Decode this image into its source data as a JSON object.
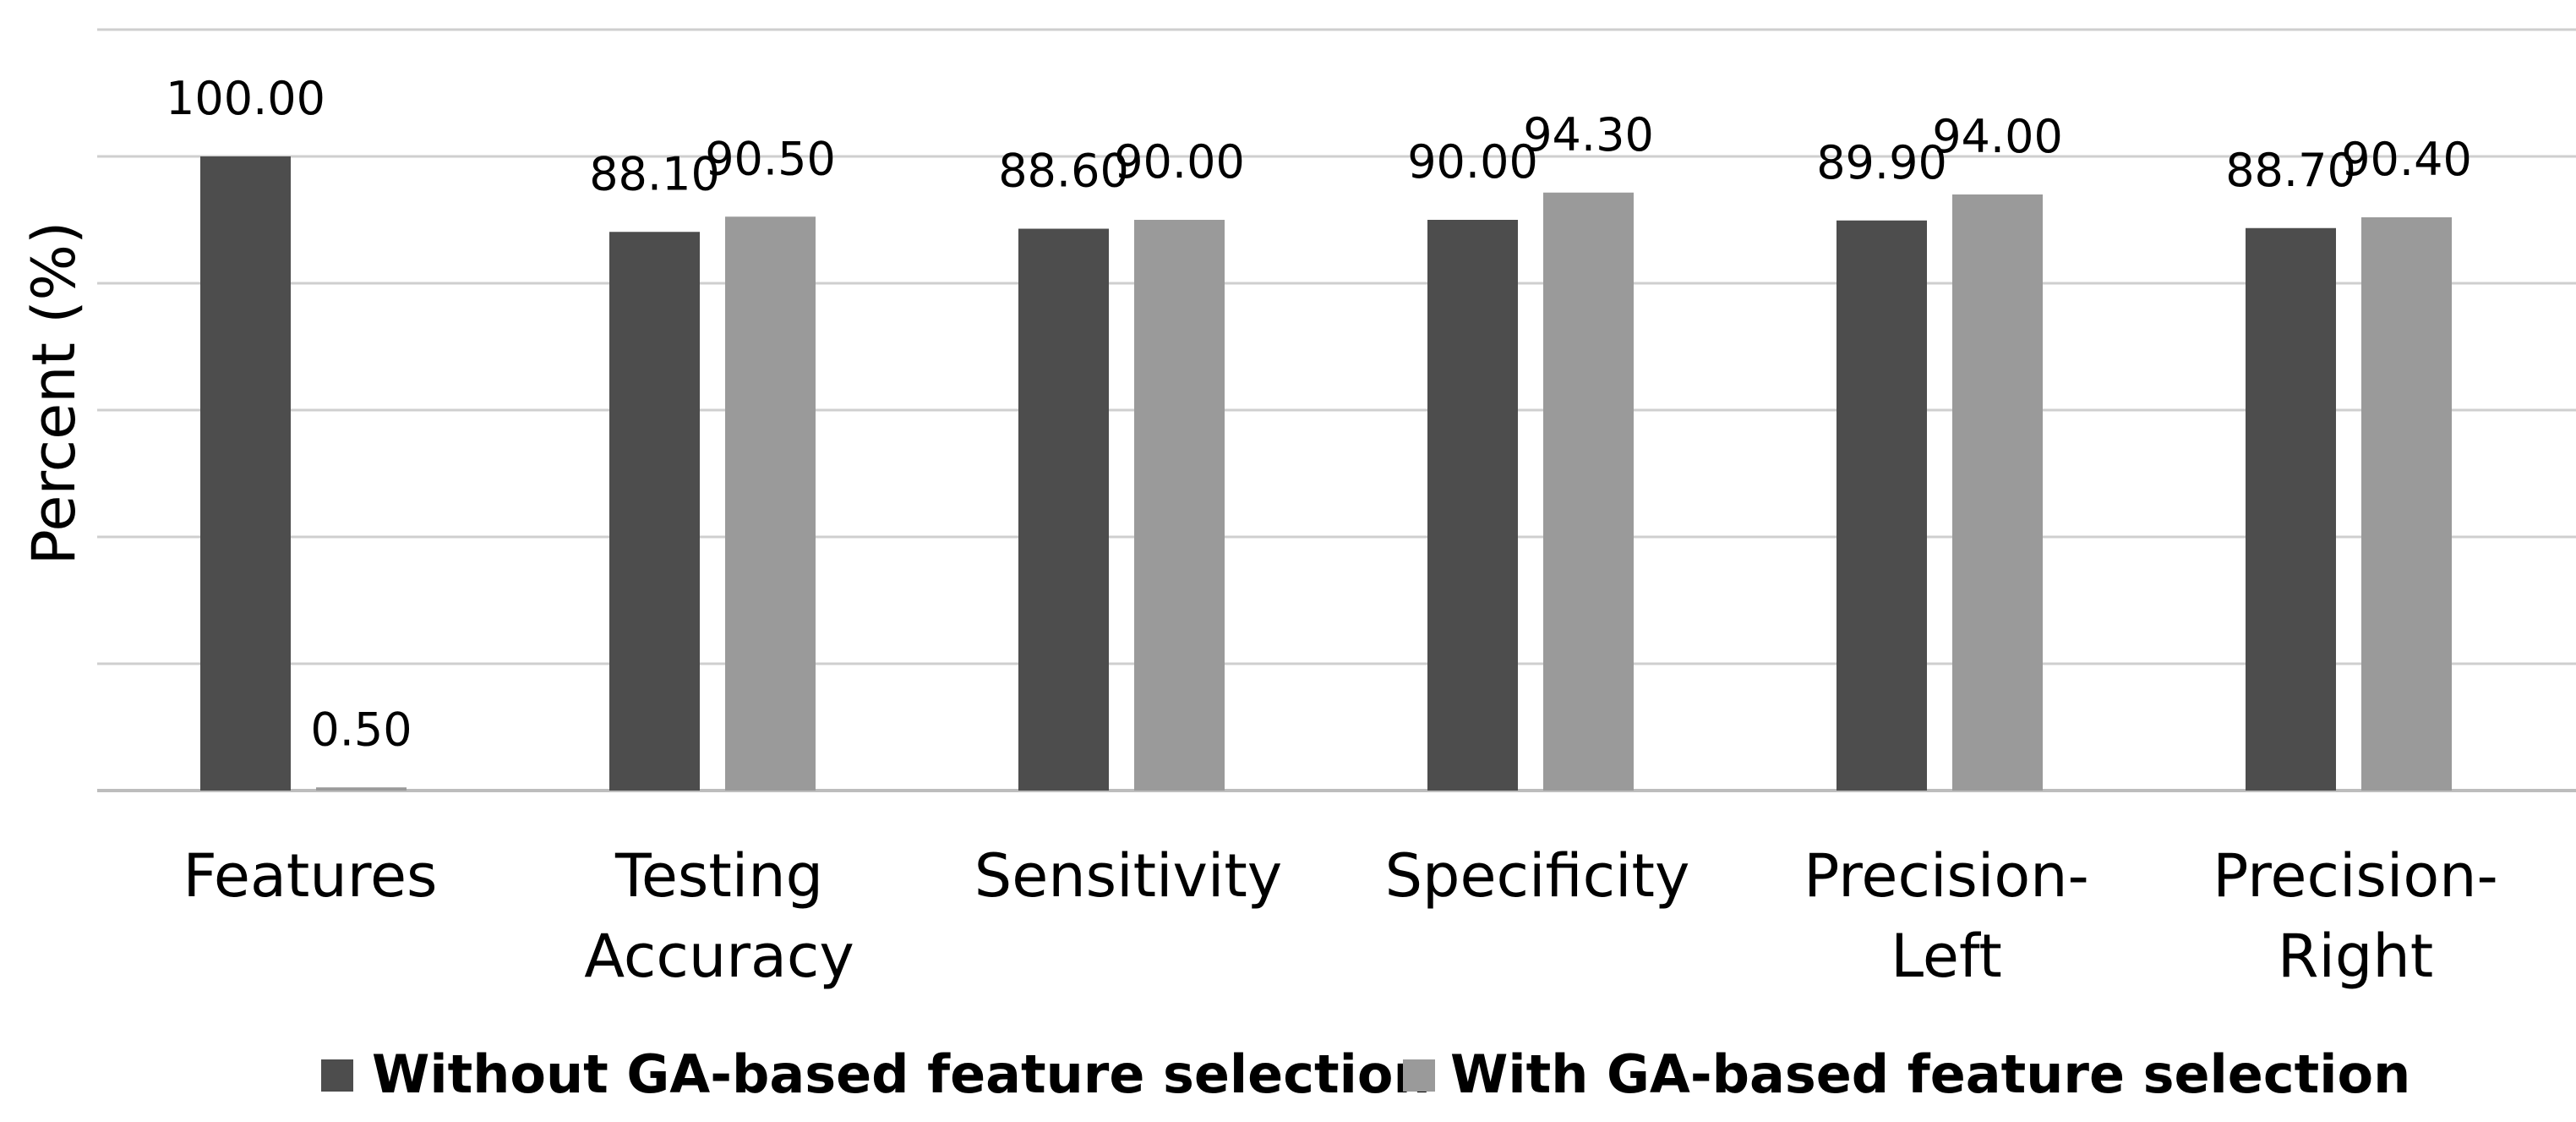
{
  "chart_data": {
    "type": "bar",
    "title": "",
    "xlabel": "",
    "ylabel": "Percent (%)",
    "ylim": [
      0,
      120
    ],
    "y_tick_step": 20,
    "y_tick_labels_shown": false,
    "grid": true,
    "legend_position": "bottom",
    "categories": [
      [
        "Features"
      ],
      [
        "Testing",
        "Accuracy"
      ],
      [
        "Sensitivity"
      ],
      [
        "Specificity"
      ],
      [
        "Precision-",
        "Left"
      ],
      [
        "Precision-",
        "Right"
      ]
    ],
    "series": [
      {
        "name": "Without GA-based feature selection",
        "color": "#4d4d4d",
        "values": [
          100.0,
          88.1,
          88.6,
          90.0,
          89.9,
          88.7
        ],
        "labels": [
          "100.00",
          "88.10",
          "88.60",
          "90.00",
          "89.90",
          "88.70"
        ]
      },
      {
        "name": "With GA-based feature selection",
        "color": "#9a9a9a",
        "values": [
          0.5,
          90.5,
          90.0,
          94.3,
          94.0,
          90.4
        ],
        "labels": [
          "0.50",
          "90.50",
          "90.00",
          "94.30",
          "94.00",
          "90.40"
        ]
      }
    ]
  }
}
